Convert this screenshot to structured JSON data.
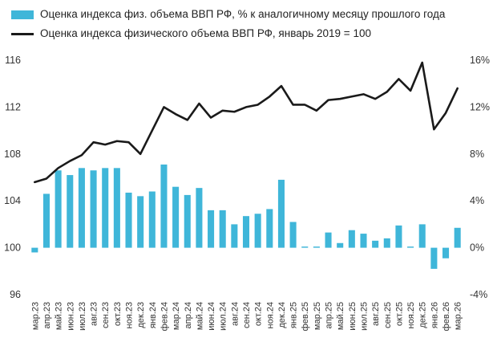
{
  "chart_data": {
    "type": "bar+line",
    "categories": [
      "мар.23",
      "апр.23",
      "май.23",
      "июн.23",
      "июл.23",
      "авг.23",
      "сен.23",
      "окт.23",
      "ноя.23",
      "дек.23",
      "янв.24",
      "фев.24",
      "мар.24",
      "апр.24",
      "май.24",
      "июн.24",
      "июл.24",
      "авг.24",
      "сен.24",
      "окт.24",
      "ноя.24",
      "дек.24",
      "янв.25",
      "фев.25",
      "мар.25",
      "апр.25",
      "май.25",
      "июн.25",
      "июл.25",
      "авг.25",
      "сен.25",
      "окт.25",
      "ноя.25",
      "дек.25",
      "янв.26",
      "фев.26",
      "мар.26"
    ],
    "series": [
      {
        "name": "Оценка индекса физ. объема ВВП РФ, % к аналогичному месяцу прошлого года",
        "type": "bar",
        "axis": "right",
        "color": "#3fb6d9",
        "values": [
          -0.4,
          4.6,
          6.6,
          6.2,
          6.8,
          6.6,
          6.8,
          6.8,
          4.7,
          4.4,
          4.8,
          7.1,
          5.2,
          4.5,
          5.1,
          3.2,
          3.2,
          2.0,
          2.7,
          2.9,
          3.3,
          5.8,
          2.2,
          0.1,
          0.1,
          1.3,
          0.4,
          1.5,
          1.2,
          0.6,
          0.8,
          1.9,
          0.1,
          2.0,
          -1.8,
          -0.9,
          1.7
        ]
      },
      {
        "name": "Оценка индекса физического объема ВВП РФ, январь 2019 = 100",
        "type": "line",
        "axis": "left",
        "color": "#1a1a1a",
        "values": [
          105.6,
          105.9,
          106.8,
          107.4,
          107.9,
          109.0,
          108.8,
          109.1,
          109.0,
          108.0,
          110.0,
          112.0,
          111.4,
          110.9,
          112.3,
          111.1,
          111.7,
          111.6,
          112.0,
          112.2,
          112.9,
          113.8,
          112.2,
          112.2,
          111.7,
          112.6,
          112.7,
          112.9,
          113.1,
          112.7,
          113.3,
          114.4,
          113.4,
          115.8,
          110.1,
          111.5,
          113.6
        ]
      }
    ],
    "y_left": {
      "min": 96,
      "max": 116,
      "ticks": [
        "96",
        "100",
        "104",
        "108",
        "112",
        "116"
      ]
    },
    "y_right": {
      "min": -4,
      "max": 16,
      "ticks": [
        "-4%",
        "0%",
        "4%",
        "8%",
        "12%",
        "16%"
      ]
    },
    "grid": false,
    "legend_position": "top-left"
  }
}
